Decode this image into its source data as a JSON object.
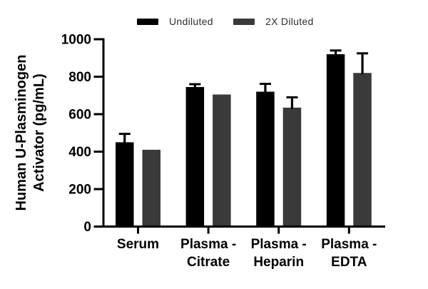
{
  "chart_data": {
    "type": "bar",
    "title": "",
    "ylabel_lines": [
      "Human U-Plasminogen",
      "Activator (pg/mL)"
    ],
    "ylabel": "Human U-Plasminogen Activator (pg/mL)",
    "xlabel": "",
    "ylim": [
      0,
      1000
    ],
    "ytick_interval": 200,
    "ytick_labels": [
      "0",
      "200",
      "400",
      "600",
      "800",
      "1000"
    ],
    "grid": false,
    "legend_position": "top",
    "categories": [
      {
        "lines": [
          "Serum"
        ]
      },
      {
        "lines": [
          "Plasma -",
          "Citrate"
        ]
      },
      {
        "lines": [
          "Plasma -",
          "Heparin"
        ]
      },
      {
        "lines": [
          "Plasma -",
          "EDTA"
        ]
      }
    ],
    "series": [
      {
        "name": "Undiluted",
        "color": "#000000",
        "values": [
          450,
          745,
          720,
          920
        ],
        "errors_plus": [
          45,
          15,
          42,
          20
        ]
      },
      {
        "name": "2X Diluted",
        "color": "#3a3a3a",
        "values": [
          410,
          705,
          635,
          820
        ],
        "errors_plus": [
          0,
          0,
          55,
          105
        ]
      }
    ],
    "units": "pg/mL",
    "axis_color": "#000000"
  }
}
